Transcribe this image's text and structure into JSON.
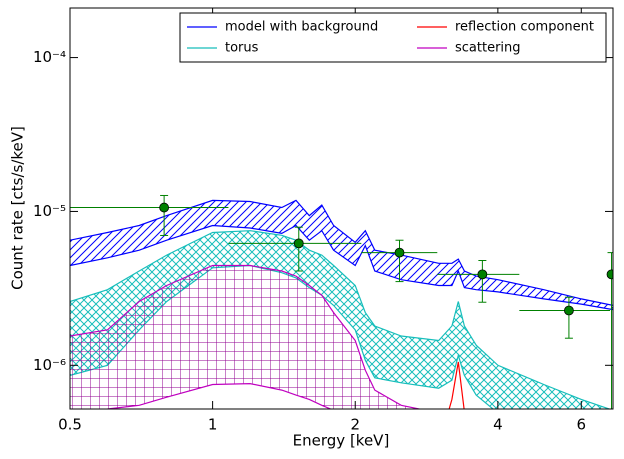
{
  "chart_data": {
    "type": "spectrum",
    "xlabel": "Energy [keV]",
    "ylabel": "Count rate [cts/s/keV]",
    "xlog": true,
    "ylog": true,
    "xlim": [
      0.5,
      7.0
    ],
    "ylim": [
      5.2e-07,
      0.00021
    ],
    "xticks": [
      0.5,
      1,
      2,
      4,
      6
    ],
    "yticks": [
      {
        "value": 1e-06,
        "label": "10⁻⁶"
      },
      {
        "value": 1e-05,
        "label": "10⁻⁵"
      },
      {
        "value": 0.0001,
        "label": "10⁻⁴"
      }
    ],
    "legend": "upper right",
    "x": [
      0.5,
      0.6,
      0.7,
      0.8,
      1.0,
      1.2,
      1.4,
      1.5,
      1.6,
      1.7,
      1.8,
      2.0,
      2.1,
      2.2,
      2.5,
      3.0,
      3.2,
      3.3,
      3.4,
      3.6,
      4.0,
      5.0,
      6.0,
      7.0
    ],
    "series": [
      {
        "name": "model with background",
        "color": "#0000ff",
        "hatch": "diagonal",
        "upper": [
          6.5e-06,
          7.3e-06,
          8.1e-06,
          9.4e-06,
          1.18e-05,
          1.16e-05,
          1.06e-05,
          1.18e-05,
          9.4e-06,
          1.1e-05,
          8.1e-06,
          6.3e-06,
          7.5e-06,
          5.6e-06,
          5.2e-06,
          4.6e-06,
          4.6e-06,
          4.9e-06,
          4.1e-06,
          3.8e-06,
          3.6e-06,
          3.1e-06,
          2.7e-06,
          2.45e-06
        ],
        "lower": [
          4.45e-06,
          5e-06,
          5.6e-06,
          6.5e-06,
          8.1e-06,
          7.8e-06,
          7.2e-06,
          8.1e-06,
          6.5e-06,
          7.5e-06,
          5.6e-06,
          4.45e-06,
          6e-06,
          4.1e-06,
          3.6e-06,
          3.3e-06,
          3.3e-06,
          4.1e-06,
          3.2e-06,
          3.1e-06,
          3e-06,
          2.7e-06,
          2.5e-06,
          2.3e-06
        ]
      },
      {
        "name": "torus",
        "color": "#17bebb",
        "hatch": "cross",
        "upper": [
          2.6e-06,
          3.1e-06,
          4.1e-06,
          5.2e-06,
          7.3e-06,
          7.5e-06,
          7e-06,
          6.5e-06,
          5.6e-06,
          5.2e-06,
          4.45e-06,
          3.3e-06,
          2.2e-06,
          1.8e-06,
          1.55e-06,
          1.45e-06,
          1.8e-06,
          2.6e-06,
          1.8e-06,
          1.35e-06,
          1e-06,
          7.5e-07,
          6e-07,
          5.1e-07
        ],
        "lower": [
          8.6e-07,
          1e-06,
          1.7e-06,
          2.6e-06,
          4.3e-06,
          4.45e-06,
          4e-06,
          3.7e-06,
          3.2e-06,
          2.85e-06,
          2.45e-06,
          1.7e-06,
          1.08e-06,
          8.3e-07,
          7.7e-07,
          7.1e-07,
          8e-07,
          1.16e-06,
          8.6e-07,
          6.4e-07,
          4.9e-07,
          4.5e-07,
          4e-07,
          4e-07
        ]
      },
      {
        "name": "reflection component",
        "color": "#ff0000",
        "values": [
          null,
          null,
          null,
          null,
          null,
          null,
          null,
          null,
          null,
          null,
          null,
          null,
          null,
          null,
          null,
          3e-07,
          6e-07,
          1.05e-06,
          5e-07,
          3e-07,
          null,
          null,
          null,
          null
        ]
      },
      {
        "name": "scattering",
        "color": "#c000c0",
        "hatch": "grid",
        "upper": [
          1.55e-06,
          1.7e-06,
          2.6e-06,
          3.3e-06,
          4.45e-06,
          4.45e-06,
          4.1e-06,
          3.8e-06,
          3.3e-06,
          2.85e-06,
          2.2e-06,
          1.45e-06,
          9.3e-07,
          6.9e-07,
          5.5e-07,
          4.9e-07,
          4e-07,
          4e-07,
          4e-07,
          4e-07,
          4e-07,
          4e-07,
          4e-07,
          4e-07
        ],
        "lower": [
          5.1e-07,
          5.2e-07,
          5.5e-07,
          6.2e-07,
          7.5e-07,
          7.6e-07,
          6.9e-07,
          6.4e-07,
          6e-07,
          5.5e-07,
          5.1e-07,
          4.5e-07,
          4e-07,
          4e-07,
          4e-07,
          4e-07,
          4e-07,
          4e-07,
          4e-07,
          4e-07,
          4e-07,
          4e-07,
          4e-07,
          4e-07
        ]
      }
    ],
    "points": {
      "color": "#008000",
      "x": [
        0.79,
        1.52,
        2.48,
        3.71,
        5.65,
        6.95
      ],
      "y": [
        1.06e-05,
        6.2e-06,
        5.4e-06,
        3.9e-06,
        2.27e-06,
        3.9e-06
      ],
      "x_low": [
        0.5,
        1.08,
        2.06,
        2.98,
        4.44,
        6.9
      ],
      "x_high": [
        1.08,
        2.06,
        2.98,
        4.44,
        6.9,
        7.2
      ],
      "y_low": [
        6.98e-06,
        4.1e-06,
        3.5e-06,
        2.57e-06,
        1.5e-06,
        5.2e-07
      ],
      "y_high": [
        1.27e-05,
        7.9e-06,
        6.5e-06,
        4.8e-06,
        2.77e-06,
        5.4e-06
      ]
    }
  }
}
